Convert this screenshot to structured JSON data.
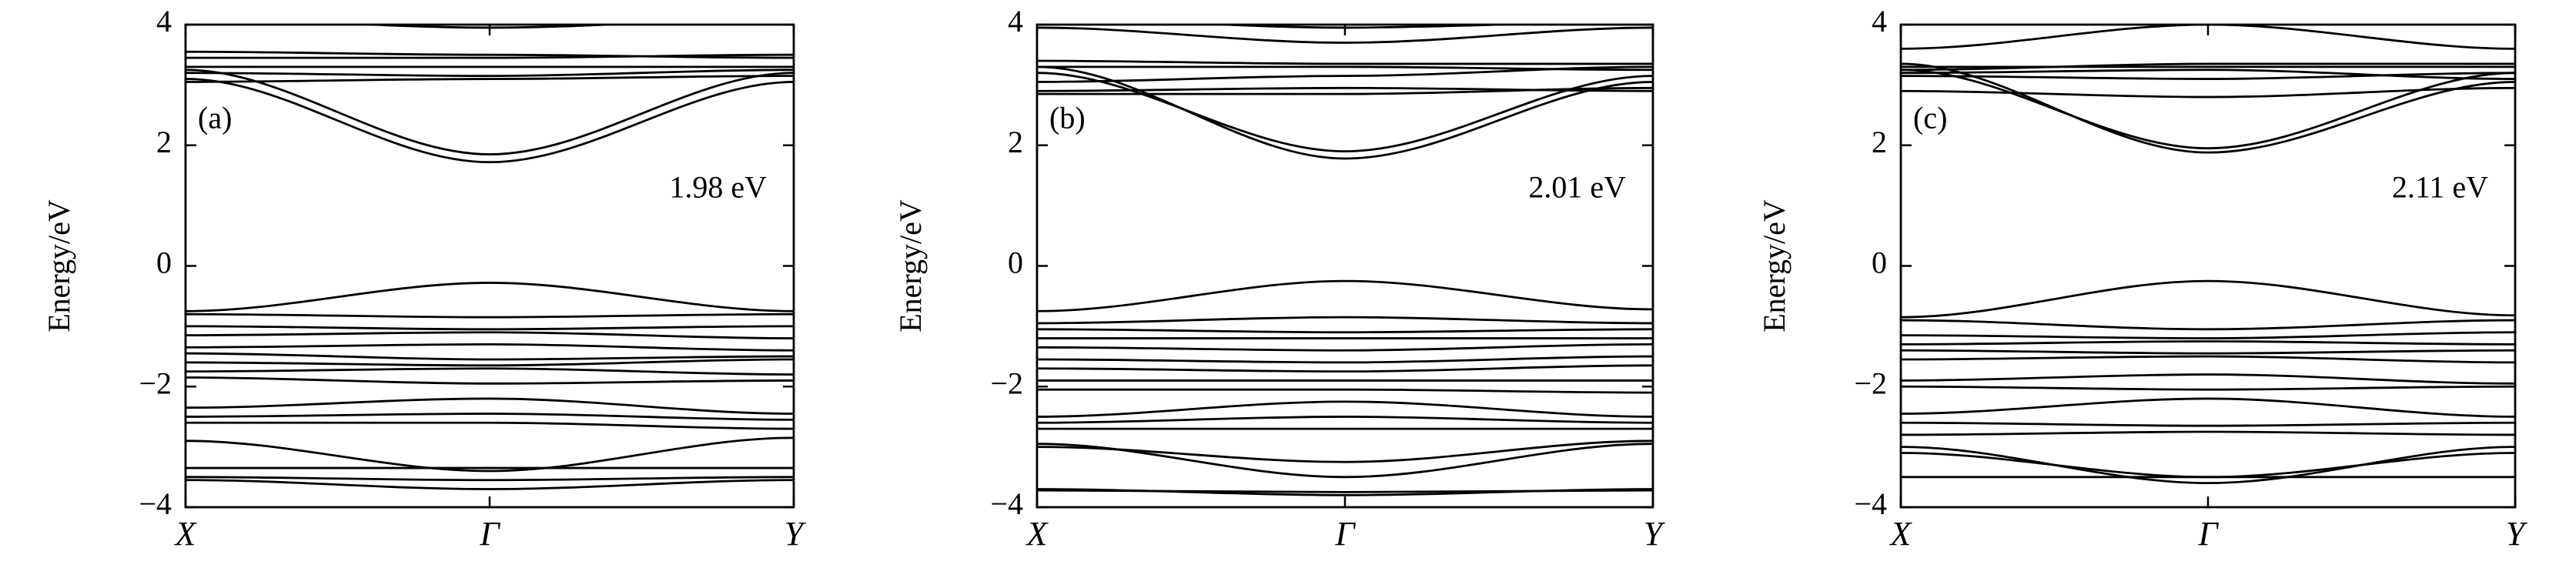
{
  "chart_data": [
    {
      "type": "line",
      "ylabel": "Energy/eV",
      "panel_label": "(a)",
      "gap_label": "1.98 eV",
      "color": "#000000",
      "categories": [
        "X",
        "Γ",
        "Y"
      ],
      "ylim": [
        -4,
        4
      ],
      "yticks": [
        {
          "value": -4,
          "label": "−4"
        },
        {
          "value": -2,
          "label": "−2"
        },
        0,
        2,
        4
      ],
      "series": [
        {
          "values": [
            3.25,
            1.85,
            3.2
          ]
        },
        {
          "values": [
            3.1,
            1.72,
            3.05
          ]
        },
        {
          "values": [
            3.55,
            3.5,
            3.45
          ]
        },
        {
          "values": [
            3.45,
            3.45,
            3.5
          ]
        },
        {
          "values": [
            3.3,
            3.3,
            3.3
          ]
        },
        {
          "values": [
            3.2,
            3.15,
            3.25
          ]
        },
        {
          "values": [
            3.05,
            3.1,
            3.15
          ]
        },
        {
          "values": [
            4.1,
            3.95,
            4.1
          ]
        },
        {
          "values": [
            -0.75,
            -0.28,
            -0.75
          ]
        },
        {
          "values": [
            -0.8,
            -0.85,
            -0.8
          ]
        },
        {
          "values": [
            -1.0,
            -1.05,
            -1.0
          ]
        },
        {
          "values": [
            -1.15,
            -1.1,
            -1.2
          ]
        },
        {
          "values": [
            -1.35,
            -1.3,
            -1.4
          ]
        },
        {
          "values": [
            -1.45,
            -1.55,
            -1.5
          ]
        },
        {
          "values": [
            -1.6,
            -1.65,
            -1.55
          ]
        },
        {
          "values": [
            -1.75,
            -1.7,
            -1.8
          ]
        },
        {
          "values": [
            -1.85,
            -1.95,
            -1.9
          ]
        },
        {
          "values": [
            -2.35,
            -2.2,
            -2.45
          ]
        },
        {
          "values": [
            -2.5,
            -2.45,
            -2.55
          ]
        },
        {
          "values": [
            -2.6,
            -2.6,
            -2.7
          ]
        },
        {
          "values": [
            -2.9,
            -3.4,
            -2.85
          ]
        },
        {
          "values": [
            -3.35,
            -3.35,
            -3.35
          ]
        },
        {
          "values": [
            -3.5,
            -3.55,
            -3.5
          ]
        },
        {
          "values": [
            -3.55,
            -3.7,
            -3.55
          ]
        }
      ]
    },
    {
      "type": "line",
      "ylabel": "Energy/eV",
      "panel_label": "(b)",
      "gap_label": "2.01 eV",
      "color": "#000000",
      "categories": [
        "X",
        "Γ",
        "Y"
      ],
      "ylim": [
        -4,
        4
      ],
      "yticks": [
        {
          "value": -4,
          "label": "−4"
        },
        {
          "value": -2,
          "label": "−2"
        },
        0,
        2,
        4
      ],
      "series": [
        {
          "values": [
            3.2,
            1.9,
            3.15
          ]
        },
        {
          "values": [
            3.3,
            1.78,
            3.05
          ]
        },
        {
          "values": [
            3.95,
            3.7,
            3.95
          ]
        },
        {
          "values": [
            3.4,
            3.35,
            3.35
          ]
        },
        {
          "values": [
            3.3,
            3.3,
            3.25
          ]
        },
        {
          "values": [
            3.05,
            3.15,
            3.3
          ]
        },
        {
          "values": [
            2.9,
            2.95,
            2.9
          ]
        },
        {
          "values": [
            2.85,
            2.85,
            2.95
          ]
        },
        {
          "values": [
            4.1,
            3.95,
            4.05
          ]
        },
        {
          "values": [
            -0.75,
            -0.25,
            -0.72
          ]
        },
        {
          "values": [
            -0.95,
            -0.85,
            -0.95
          ]
        },
        {
          "values": [
            -1.05,
            -1.1,
            -1.05
          ]
        },
        {
          "values": [
            -1.2,
            -1.2,
            -1.2
          ]
        },
        {
          "values": [
            -1.35,
            -1.4,
            -1.3
          ]
        },
        {
          "values": [
            -1.55,
            -1.6,
            -1.5
          ]
        },
        {
          "values": [
            -1.7,
            -1.75,
            -1.65
          ]
        },
        {
          "values": [
            -1.9,
            -1.9,
            -1.9
          ]
        },
        {
          "values": [
            -2.05,
            -2.05,
            -2.1
          ]
        },
        {
          "values": [
            -2.5,
            -2.25,
            -2.5
          ]
        },
        {
          "values": [
            -2.6,
            -2.5,
            -2.6
          ]
        },
        {
          "values": [
            -2.7,
            -2.7,
            -2.7
          ]
        },
        {
          "values": [
            -2.95,
            -3.5,
            -2.95
          ]
        },
        {
          "values": [
            -3.0,
            -3.25,
            -2.9
          ]
        },
        {
          "values": [
            -3.72,
            -3.75,
            -3.72
          ]
        },
        {
          "values": [
            -3.7,
            -3.8,
            -3.7
          ]
        }
      ]
    },
    {
      "type": "line",
      "ylabel": "Energy/eV",
      "panel_label": "(c)",
      "gap_label": "2.11 eV",
      "color": "#000000",
      "categories": [
        "X",
        "Γ",
        "Y"
      ],
      "ylim": [
        -4,
        4
      ],
      "yticks": [
        {
          "value": -4,
          "label": "−4"
        },
        {
          "value": -2,
          "label": "−2"
        },
        0,
        2,
        4
      ],
      "series": [
        {
          "values": [
            3.25,
            1.95,
            3.2
          ]
        },
        {
          "values": [
            3.35,
            1.88,
            3.05
          ]
        },
        {
          "values": [
            3.6,
            4.0,
            3.6
          ]
        },
        {
          "values": [
            3.3,
            3.3,
            3.3
          ]
        },
        {
          "values": [
            3.25,
            3.35,
            3.35
          ]
        },
        {
          "values": [
            3.2,
            3.25,
            3.1
          ]
        },
        {
          "values": [
            3.15,
            3.1,
            3.2
          ]
        },
        {
          "values": [
            2.9,
            2.8,
            2.95
          ]
        },
        {
          "values": [
            -0.85,
            -0.25,
            -0.82
          ]
        },
        {
          "values": [
            -0.9,
            -1.05,
            -0.9
          ]
        },
        {
          "values": [
            -1.15,
            -1.2,
            -1.1
          ]
        },
        {
          "values": [
            -1.3,
            -1.25,
            -1.3
          ]
        },
        {
          "values": [
            -1.4,
            -1.45,
            -1.4
          ]
        },
        {
          "values": [
            -1.55,
            -1.5,
            -1.6
          ]
        },
        {
          "values": [
            -1.9,
            -1.8,
            -1.95
          ]
        },
        {
          "values": [
            -2.0,
            -2.05,
            -2.0
          ]
        },
        {
          "values": [
            -2.45,
            -2.2,
            -2.5
          ]
        },
        {
          "values": [
            -2.6,
            -2.65,
            -2.6
          ]
        },
        {
          "values": [
            -2.8,
            -2.75,
            -2.8
          ]
        },
        {
          "values": [
            -3.0,
            -3.6,
            -3.0
          ]
        },
        {
          "values": [
            -3.1,
            -3.5,
            -3.1
          ]
        },
        {
          "values": [
            -3.5,
            -3.5,
            -3.5
          ]
        }
      ]
    }
  ]
}
